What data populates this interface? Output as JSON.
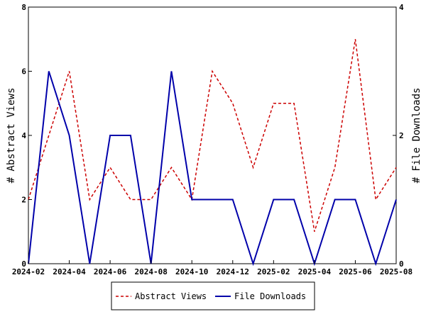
{
  "chart_data": {
    "type": "line",
    "x": [
      "2024-02",
      "2024-03",
      "2024-04",
      "2024-05",
      "2024-06",
      "2024-07",
      "2024-08",
      "2024-09",
      "2024-10",
      "2024-11",
      "2024-12",
      "2025-01",
      "2025-02",
      "2025-03",
      "2025-04",
      "2025-05",
      "2025-06",
      "2025-07",
      "2025-08"
    ],
    "x_ticks": [
      "2024-02",
      "2024-04",
      "2024-06",
      "2024-08",
      "2024-10",
      "2024-12",
      "2025-02",
      "2025-04",
      "2025-06",
      "2025-08"
    ],
    "series": [
      {
        "name": "Abstract Views",
        "axis": "left",
        "color": "#cc0000",
        "style": "dashed",
        "values": [
          2,
          4,
          6,
          2,
          3,
          2,
          2,
          3,
          2,
          6,
          5,
          3,
          5,
          5,
          1,
          3,
          7,
          2,
          3
        ]
      },
      {
        "name": "File Downloads",
        "axis": "right",
        "color": "#0000aa",
        "style": "solid",
        "values": [
          0,
          3,
          2,
          0,
          2,
          2,
          0,
          3,
          1,
          1,
          1,
          0,
          1,
          1,
          0,
          1,
          1,
          0,
          1
        ]
      }
    ],
    "ylabel_left": "# Abstract Views",
    "ylabel_right": "# File Downloads",
    "ylim_left": [
      0,
      8
    ],
    "ylim_right": [
      0,
      4
    ],
    "yticks_left": [
      0,
      2,
      4,
      6,
      8
    ],
    "yticks_right": [
      0,
      2,
      4
    ],
    "grid": false,
    "legend_position": "bottom"
  }
}
